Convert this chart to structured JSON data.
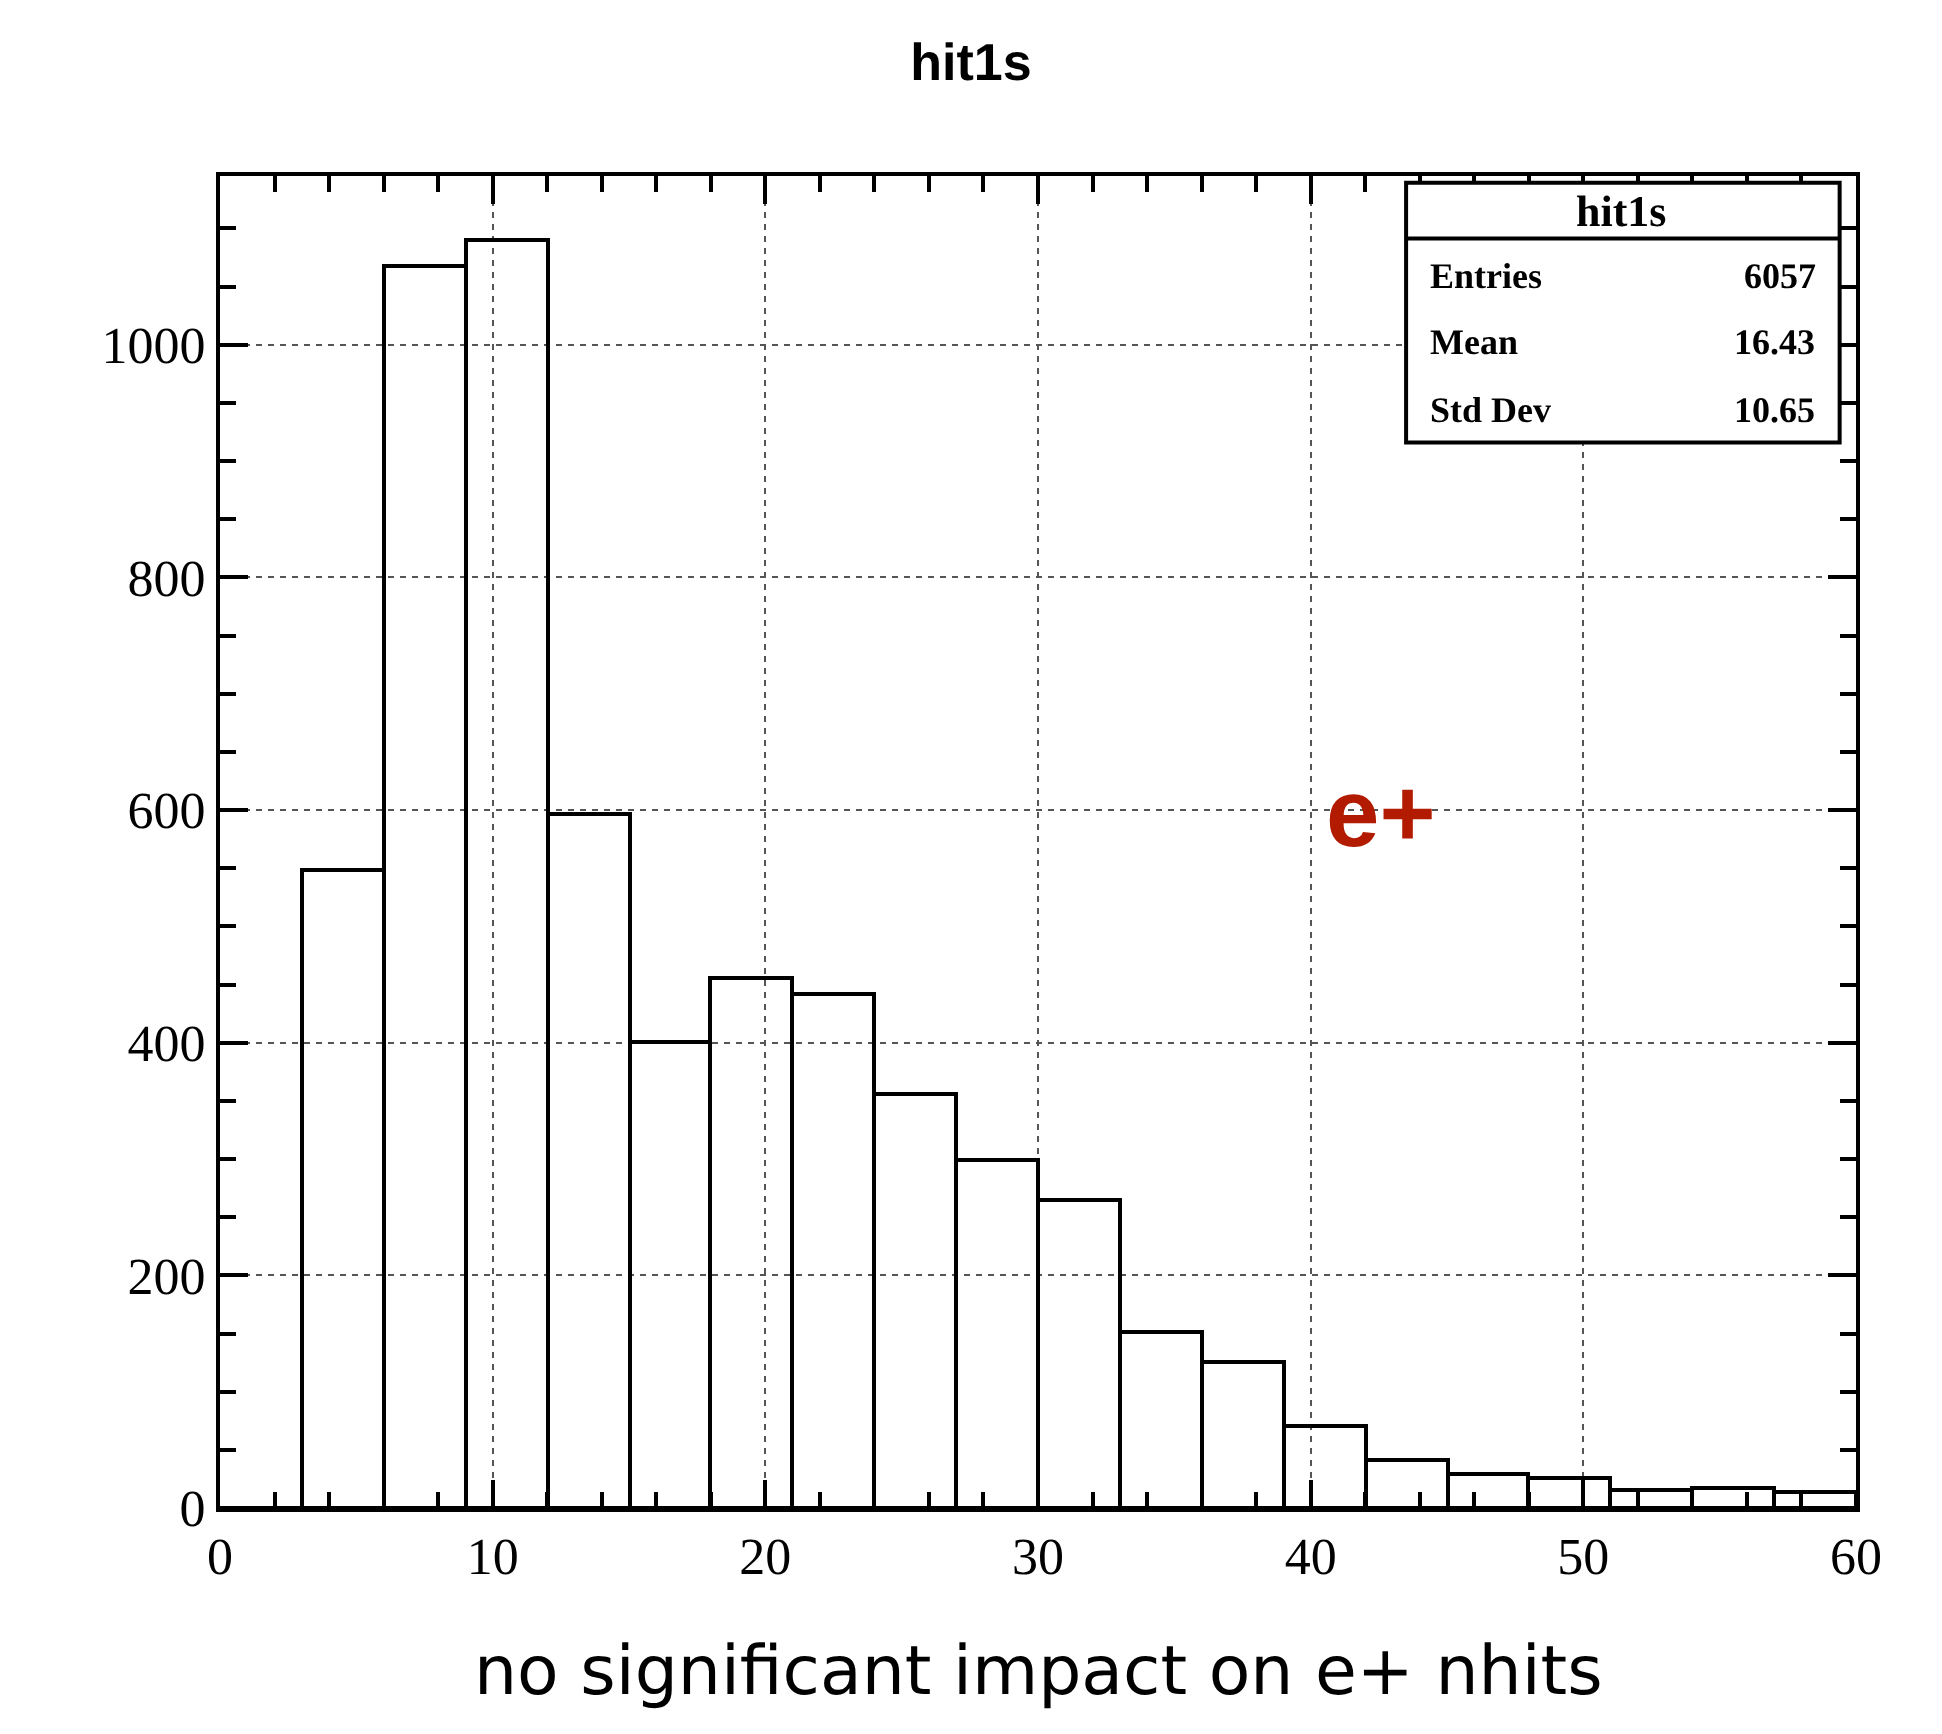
{
  "chart_data": {
    "type": "histogram",
    "title": "hit1s",
    "color": "#000000",
    "bins": [
      0,
      3,
      6,
      9,
      12,
      15,
      18,
      21,
      24,
      27,
      30,
      33,
      36,
      39,
      42,
      45,
      48,
      51,
      54,
      57,
      60
    ],
    "values": [
      0,
      548,
      1068,
      1090,
      596,
      400,
      455,
      442,
      356,
      300,
      265,
      152,
      125,
      70,
      42,
      30,
      25,
      15,
      18,
      14
    ],
    "xlim": [
      0,
      60
    ],
    "xticks": [
      0,
      10,
      20,
      30,
      40,
      50,
      60
    ],
    "ylim": [
      0,
      1145
    ],
    "yticks": [
      0,
      200,
      400,
      600,
      800,
      1000
    ],
    "grid": true,
    "line_style": "dotted",
    "annotations": [
      "e+",
      "no significant impact on e+ nhits",
      "hit1s",
      "Entries",
      "6057",
      "Mean",
      "16.43",
      "Std Dev",
      "10.65"
    ]
  }
}
